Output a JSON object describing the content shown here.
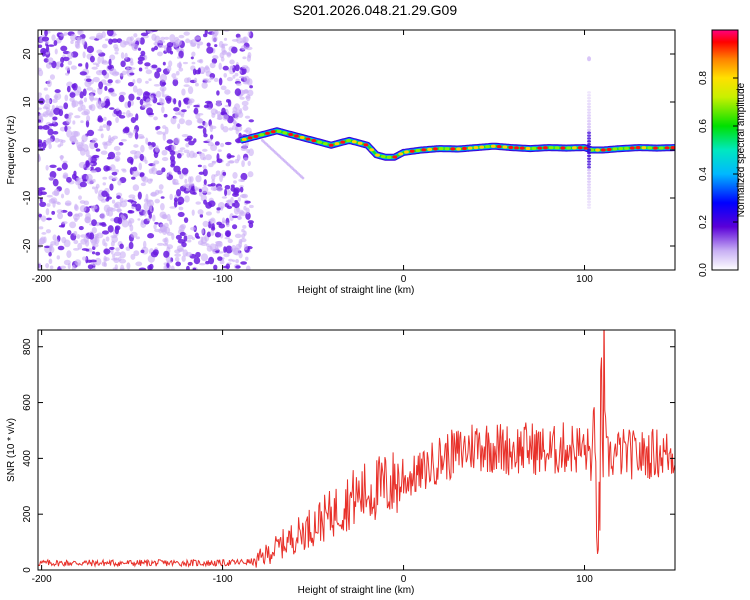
{
  "title": "S201.2026.048.21.29.G09",
  "colors": {
    "snr_line": "#e8312a",
    "noise_purple": "#6a1be0",
    "noise_light": "#c9aef5"
  },
  "chart_data": [
    {
      "type": "heatmap",
      "name": "spectrogram",
      "xlabel": "Height of straight line (km)",
      "ylabel": "Frequency (Hz)",
      "xlim": [
        -202,
        150
      ],
      "ylim": [
        -25,
        25
      ],
      "xticks": [
        -200,
        -100,
        0,
        100
      ],
      "yticks": [
        -20,
        -10,
        0,
        10,
        20
      ],
      "ridge": {
        "description_x": [
          -90,
          -80,
          -70,
          -60,
          -50,
          -40,
          -30,
          -20,
          -15,
          -10,
          -5,
          0,
          10,
          20,
          30,
          40,
          50,
          60,
          70,
          80,
          90,
          100,
          104,
          110,
          120,
          130,
          140,
          150
        ],
        "frequency_hz": [
          2,
          3,
          4,
          3,
          2,
          1,
          2,
          1,
          -1,
          -1.5,
          -1.5,
          -0.5,
          0,
          0.3,
          0.2,
          0.5,
          0.8,
          0.5,
          0.3,
          0.5,
          0.4,
          0.5,
          0,
          0,
          0.3,
          0.5,
          0.4,
          0.5
        ]
      },
      "noise_region": [
        -202,
        -88
      ],
      "colorbar": {
        "label": "Normalized spectral amplitude",
        "range": [
          0.0,
          1.0
        ],
        "ticks": [
          "0.0",
          "0.2",
          "0.4",
          "0.6",
          "0.8"
        ]
      }
    },
    {
      "type": "line",
      "name": "snr",
      "xlabel": "Height of straight line (km)",
      "ylabel": "SNR (10 * v/v)",
      "xlim": [
        -202,
        150
      ],
      "ylim": [
        0,
        860
      ],
      "xticks": [
        -200,
        -100,
        0,
        100
      ],
      "yticks": [
        0,
        200,
        400,
        600,
        800
      ],
      "series": [
        {
          "name": "SNR",
          "envelope_x": [
            -202,
            -100,
            -82,
            -70,
            -60,
            -50,
            -40,
            -30,
            -20,
            -10,
            0,
            10,
            20,
            30,
            40,
            50,
            60,
            70,
            80,
            90,
            100,
            103,
            106,
            108,
            110,
            112,
            120,
            130,
            140,
            150
          ],
          "envelope_y": [
            25,
            25,
            30,
            80,
            120,
            160,
            200,
            250,
            280,
            300,
            320,
            350,
            400,
            420,
            450,
            440,
            430,
            440,
            420,
            440,
            430,
            420,
            300,
            150,
            700,
            400,
            420,
            410,
            420,
            410
          ]
        }
      ]
    }
  ]
}
